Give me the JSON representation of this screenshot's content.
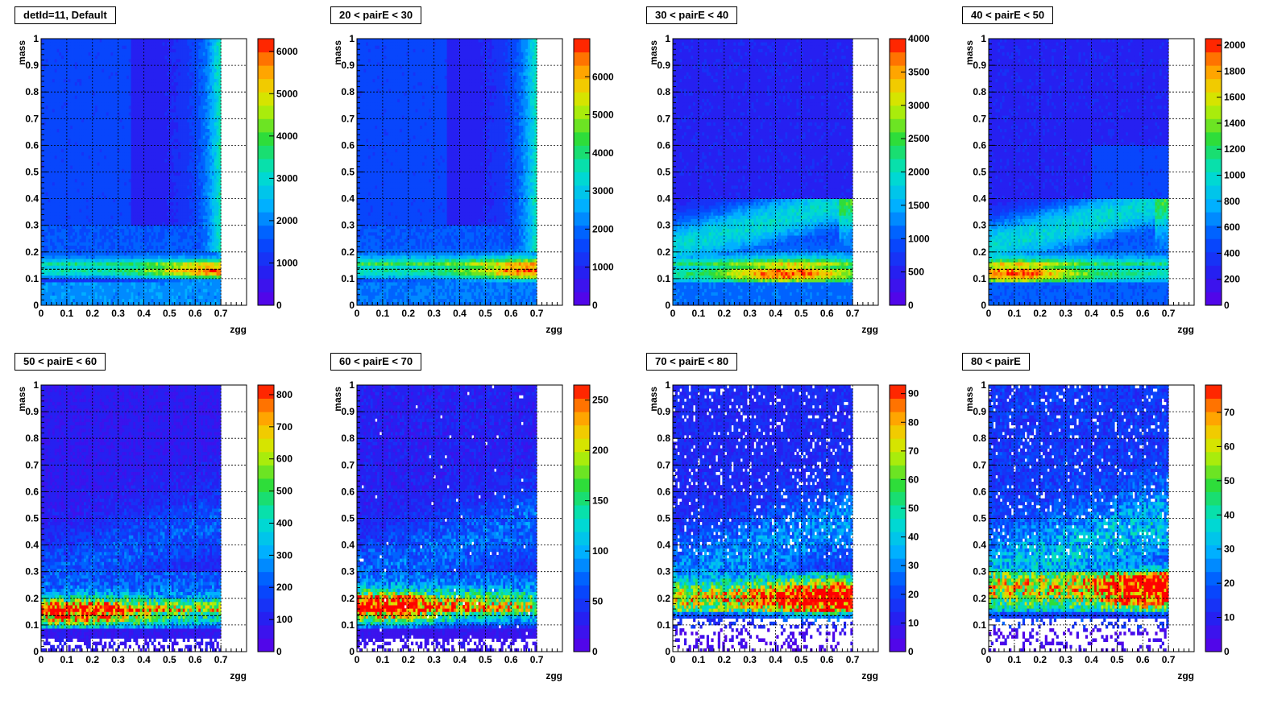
{
  "chart_data": [
    {
      "type": "heatmap",
      "title": "detId=11, Default",
      "xlabel": "zgg",
      "ylabel": "mass",
      "xlim": [
        0,
        0.8
      ],
      "ylim": [
        0,
        1
      ],
      "x_ticks": [
        "0",
        "0.1",
        "0.2",
        "0.3",
        "0.4",
        "0.5",
        "0.6",
        "0.7"
      ],
      "y_ticks": [
        "0",
        "0.1",
        "0.2",
        "0.3",
        "0.4",
        "0.5",
        "0.6",
        "0.7",
        "0.8",
        "0.9",
        "1"
      ],
      "z_max": 6300,
      "z_ticks": [
        0,
        1000,
        2000,
        3000,
        4000,
        5000,
        6000
      ],
      "grid": true,
      "ref_line_mass": 0.135,
      "features": {
        "peak_mass": 0.13,
        "peak_zgg": 0.69,
        "band_width": 0.025,
        "empty_low_mass": false,
        "high_mass_level": 0.25,
        "low_mass_level": 0.25
      }
    },
    {
      "type": "heatmap",
      "title": "20 < pairE < 30",
      "xlabel": "zgg",
      "ylabel": "mass",
      "xlim": [
        0,
        0.8
      ],
      "ylim": [
        0,
        1
      ],
      "x_ticks": [
        "0",
        "0.1",
        "0.2",
        "0.3",
        "0.4",
        "0.5",
        "0.6",
        "0.7"
      ],
      "y_ticks": [
        "0",
        "0.1",
        "0.2",
        "0.3",
        "0.4",
        "0.5",
        "0.6",
        "0.7",
        "0.8",
        "0.9",
        "1"
      ],
      "z_max": 7000,
      "z_ticks": [
        0,
        1000,
        2000,
        3000,
        4000,
        5000,
        6000
      ],
      "grid": true,
      "ref_line_mass": 0.135,
      "features": {
        "peak_mass": 0.13,
        "peak_zgg": 0.69,
        "band_width": 0.03,
        "empty_low_mass": false,
        "high_mass_level": 0.22,
        "low_mass_level": 0.22
      }
    },
    {
      "type": "heatmap",
      "title": "30 < pairE < 40",
      "xlabel": "zgg",
      "ylabel": "mass",
      "xlim": [
        0,
        0.8
      ],
      "ylim": [
        0,
        1
      ],
      "x_ticks": [
        "0",
        "0.1",
        "0.2",
        "0.3",
        "0.4",
        "0.5",
        "0.6",
        "0.7"
      ],
      "y_ticks": [
        "0",
        "0.1",
        "0.2",
        "0.3",
        "0.4",
        "0.5",
        "0.6",
        "0.7",
        "0.8",
        "0.9",
        "1"
      ],
      "z_max": 4000,
      "z_ticks": [
        0,
        500,
        1000,
        1500,
        2000,
        2500,
        3000,
        3500,
        4000
      ],
      "grid": true,
      "ref_line_mass": 0.135,
      "features": {
        "peak_mass": 0.12,
        "peak_zgg": 0.45,
        "band_width": 0.035,
        "empty_low_mass": false,
        "high_mass_level": 0.2,
        "low_mass_level": 0.2
      }
    },
    {
      "type": "heatmap",
      "title": "40 < pairE < 50",
      "xlabel": "zgg",
      "ylabel": "mass",
      "xlim": [
        0,
        0.8
      ],
      "ylim": [
        0,
        1
      ],
      "x_ticks": [
        "0",
        "0.1",
        "0.2",
        "0.3",
        "0.4",
        "0.5",
        "0.6",
        "0.7"
      ],
      "y_ticks": [
        "0",
        "0.1",
        "0.2",
        "0.3",
        "0.4",
        "0.5",
        "0.6",
        "0.7",
        "0.8",
        "0.9",
        "1"
      ],
      "z_max": 2050,
      "z_ticks": [
        0,
        200,
        400,
        600,
        800,
        1000,
        1200,
        1400,
        1600,
        1800,
        2000
      ],
      "grid": true,
      "ref_line_mass": 0.135,
      "features": {
        "peak_mass": 0.12,
        "peak_zgg": 0.1,
        "band_width": 0.035,
        "empty_low_mass": false,
        "high_mass_level": 0.2,
        "low_mass_level": 0.18
      }
    },
    {
      "type": "heatmap",
      "title": "50 < pairE < 60",
      "xlabel": "zgg",
      "ylabel": "mass",
      "xlim": [
        0,
        0.8
      ],
      "ylim": [
        0,
        1
      ],
      "x_ticks": [
        "0",
        "0.1",
        "0.2",
        "0.3",
        "0.4",
        "0.5",
        "0.6",
        "0.7"
      ],
      "y_ticks": [
        "0",
        "0.1",
        "0.2",
        "0.3",
        "0.4",
        "0.5",
        "0.6",
        "0.7",
        "0.8",
        "0.9",
        "1"
      ],
      "z_max": 830,
      "z_ticks": [
        0,
        100,
        200,
        300,
        400,
        500,
        600,
        700,
        800
      ],
      "grid": true,
      "ref_line_mass": 0.135,
      "features": {
        "peak_mass": 0.14,
        "peak_zgg": 0.15,
        "band_width": 0.04,
        "empty_low_mass": true,
        "high_mass_level": 0.22,
        "low_mass_level": 0.1
      }
    },
    {
      "type": "heatmap",
      "title": "60 < pairE < 70",
      "xlabel": "zgg",
      "ylabel": "mass",
      "xlim": [
        0,
        0.8
      ],
      "ylim": [
        0,
        1
      ],
      "x_ticks": [
        "0",
        "0.1",
        "0.2",
        "0.3",
        "0.4",
        "0.5",
        "0.6",
        "0.7"
      ],
      "y_ticks": [
        "0",
        "0.1",
        "0.2",
        "0.3",
        "0.4",
        "0.5",
        "0.6",
        "0.7",
        "0.8",
        "0.9",
        "1"
      ],
      "z_max": 265,
      "z_ticks": [
        0,
        50,
        100,
        150,
        200,
        250
      ],
      "grid": true,
      "ref_line_mass": 0.135,
      "features": {
        "peak_mass": 0.16,
        "peak_zgg": 0.1,
        "band_width": 0.045,
        "empty_low_mass": true,
        "high_mass_level": 0.25,
        "low_mass_level": 0.08
      }
    },
    {
      "type": "heatmap",
      "title": "70 < pairE < 80",
      "xlabel": "zgg",
      "ylabel": "mass",
      "xlim": [
        0,
        0.8
      ],
      "ylim": [
        0,
        1
      ],
      "x_ticks": [
        "0",
        "0.1",
        "0.2",
        "0.3",
        "0.4",
        "0.5",
        "0.6",
        "0.7"
      ],
      "y_ticks": [
        "0",
        "0.1",
        "0.2",
        "0.3",
        "0.4",
        "0.5",
        "0.6",
        "0.7",
        "0.8",
        "0.9",
        "1"
      ],
      "z_max": 93,
      "z_ticks": [
        0,
        10,
        20,
        30,
        40,
        50,
        60,
        70,
        80,
        90
      ],
      "grid": true,
      "ref_line_mass": 0.135,
      "features": {
        "peak_mass": 0.2,
        "peak_zgg": 0.6,
        "band_width": 0.05,
        "empty_low_mass": true,
        "high_mass_level": 0.3,
        "low_mass_level": 0.05
      }
    },
    {
      "type": "heatmap",
      "title": "80 < pairE",
      "xlabel": "zgg",
      "ylabel": "mass",
      "xlim": [
        0,
        0.8
      ],
      "ylim": [
        0,
        1
      ],
      "x_ticks": [
        "0",
        "0.1",
        "0.2",
        "0.3",
        "0.4",
        "0.5",
        "0.6",
        "0.7"
      ],
      "y_ticks": [
        "0",
        "0.1",
        "0.2",
        "0.3",
        "0.4",
        "0.5",
        "0.6",
        "0.7",
        "0.8",
        "0.9",
        "1"
      ],
      "z_max": 78,
      "z_ticks": [
        0,
        10,
        20,
        30,
        40,
        50,
        60,
        70
      ],
      "grid": true,
      "ref_line_mass": 0.135,
      "features": {
        "peak_mass": 0.24,
        "peak_zgg": 0.68,
        "band_width": 0.06,
        "empty_low_mass": true,
        "high_mass_level": 0.38,
        "low_mass_level": 0.05
      }
    }
  ]
}
